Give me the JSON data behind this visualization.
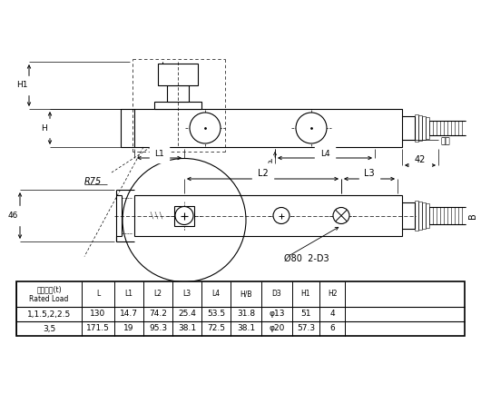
{
  "bg_color": "#ffffff",
  "table_headers": [
    "額定載荷(t)\nRated Load",
    "L",
    "L1",
    "L2",
    "L3",
    "L4",
    "H/B",
    "D3",
    "H1",
    "H2"
  ],
  "table_rows": [
    [
      "1,1.5,2,2.5",
      "130",
      "14.7",
      "74.2",
      "25.4",
      "53.5",
      "31.8",
      "φ13",
      "51",
      "4"
    ],
    [
      "3,5",
      "171.5",
      "19",
      "95.3",
      "38.1",
      "72.5",
      "38.1",
      "φ20",
      "57.3",
      "6"
    ]
  ],
  "label_gasket": "墊片",
  "label_42": "42",
  "label_46": "46",
  "label_R75": "R75",
  "label_L1": "L1",
  "label_L2": "L2",
  "label_L3": "L3",
  "label_L4": "L4",
  "label_H": "H",
  "label_H1": "H1",
  "label_B": "B",
  "label_circle": "Ø80  2-D3",
  "label_d": "d"
}
